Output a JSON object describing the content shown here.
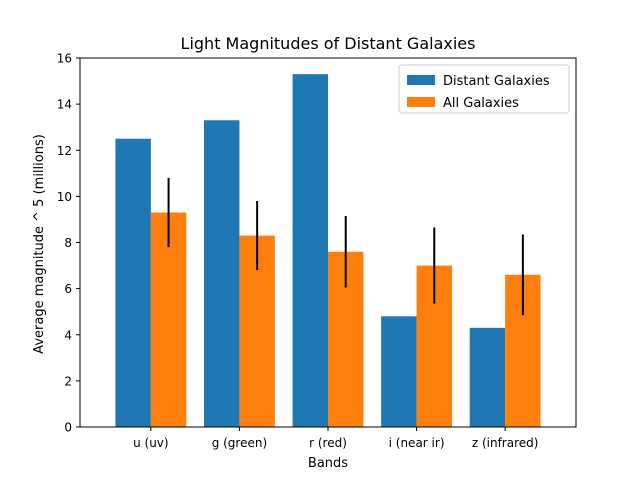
{
  "chart_data": {
    "type": "bar",
    "title": "Light Magnitudes of Distant Galaxies",
    "xlabel": "Bands",
    "ylabel": "Average magnitude ^ 5 (millions)",
    "categories": [
      "u (uv)",
      "g (green)",
      "r (red)",
      "i (near ir)",
      "z (infrared)"
    ],
    "series": [
      {
        "name": "Distant Galaxies",
        "values": [
          12.5,
          13.3,
          15.3,
          4.8,
          4.3
        ],
        "color": "#1f77b4"
      },
      {
        "name": "All Galaxies",
        "values": [
          9.3,
          8.3,
          7.6,
          7.0,
          6.6
        ],
        "color": "#ff7f0e",
        "error": [
          1.5,
          1.5,
          1.55,
          1.65,
          1.75
        ]
      }
    ],
    "ylim": [
      0,
      16
    ],
    "yticks": [
      0,
      2,
      4,
      6,
      8,
      10,
      12,
      14,
      16
    ],
    "grid": false,
    "legend_position": "top-right"
  }
}
